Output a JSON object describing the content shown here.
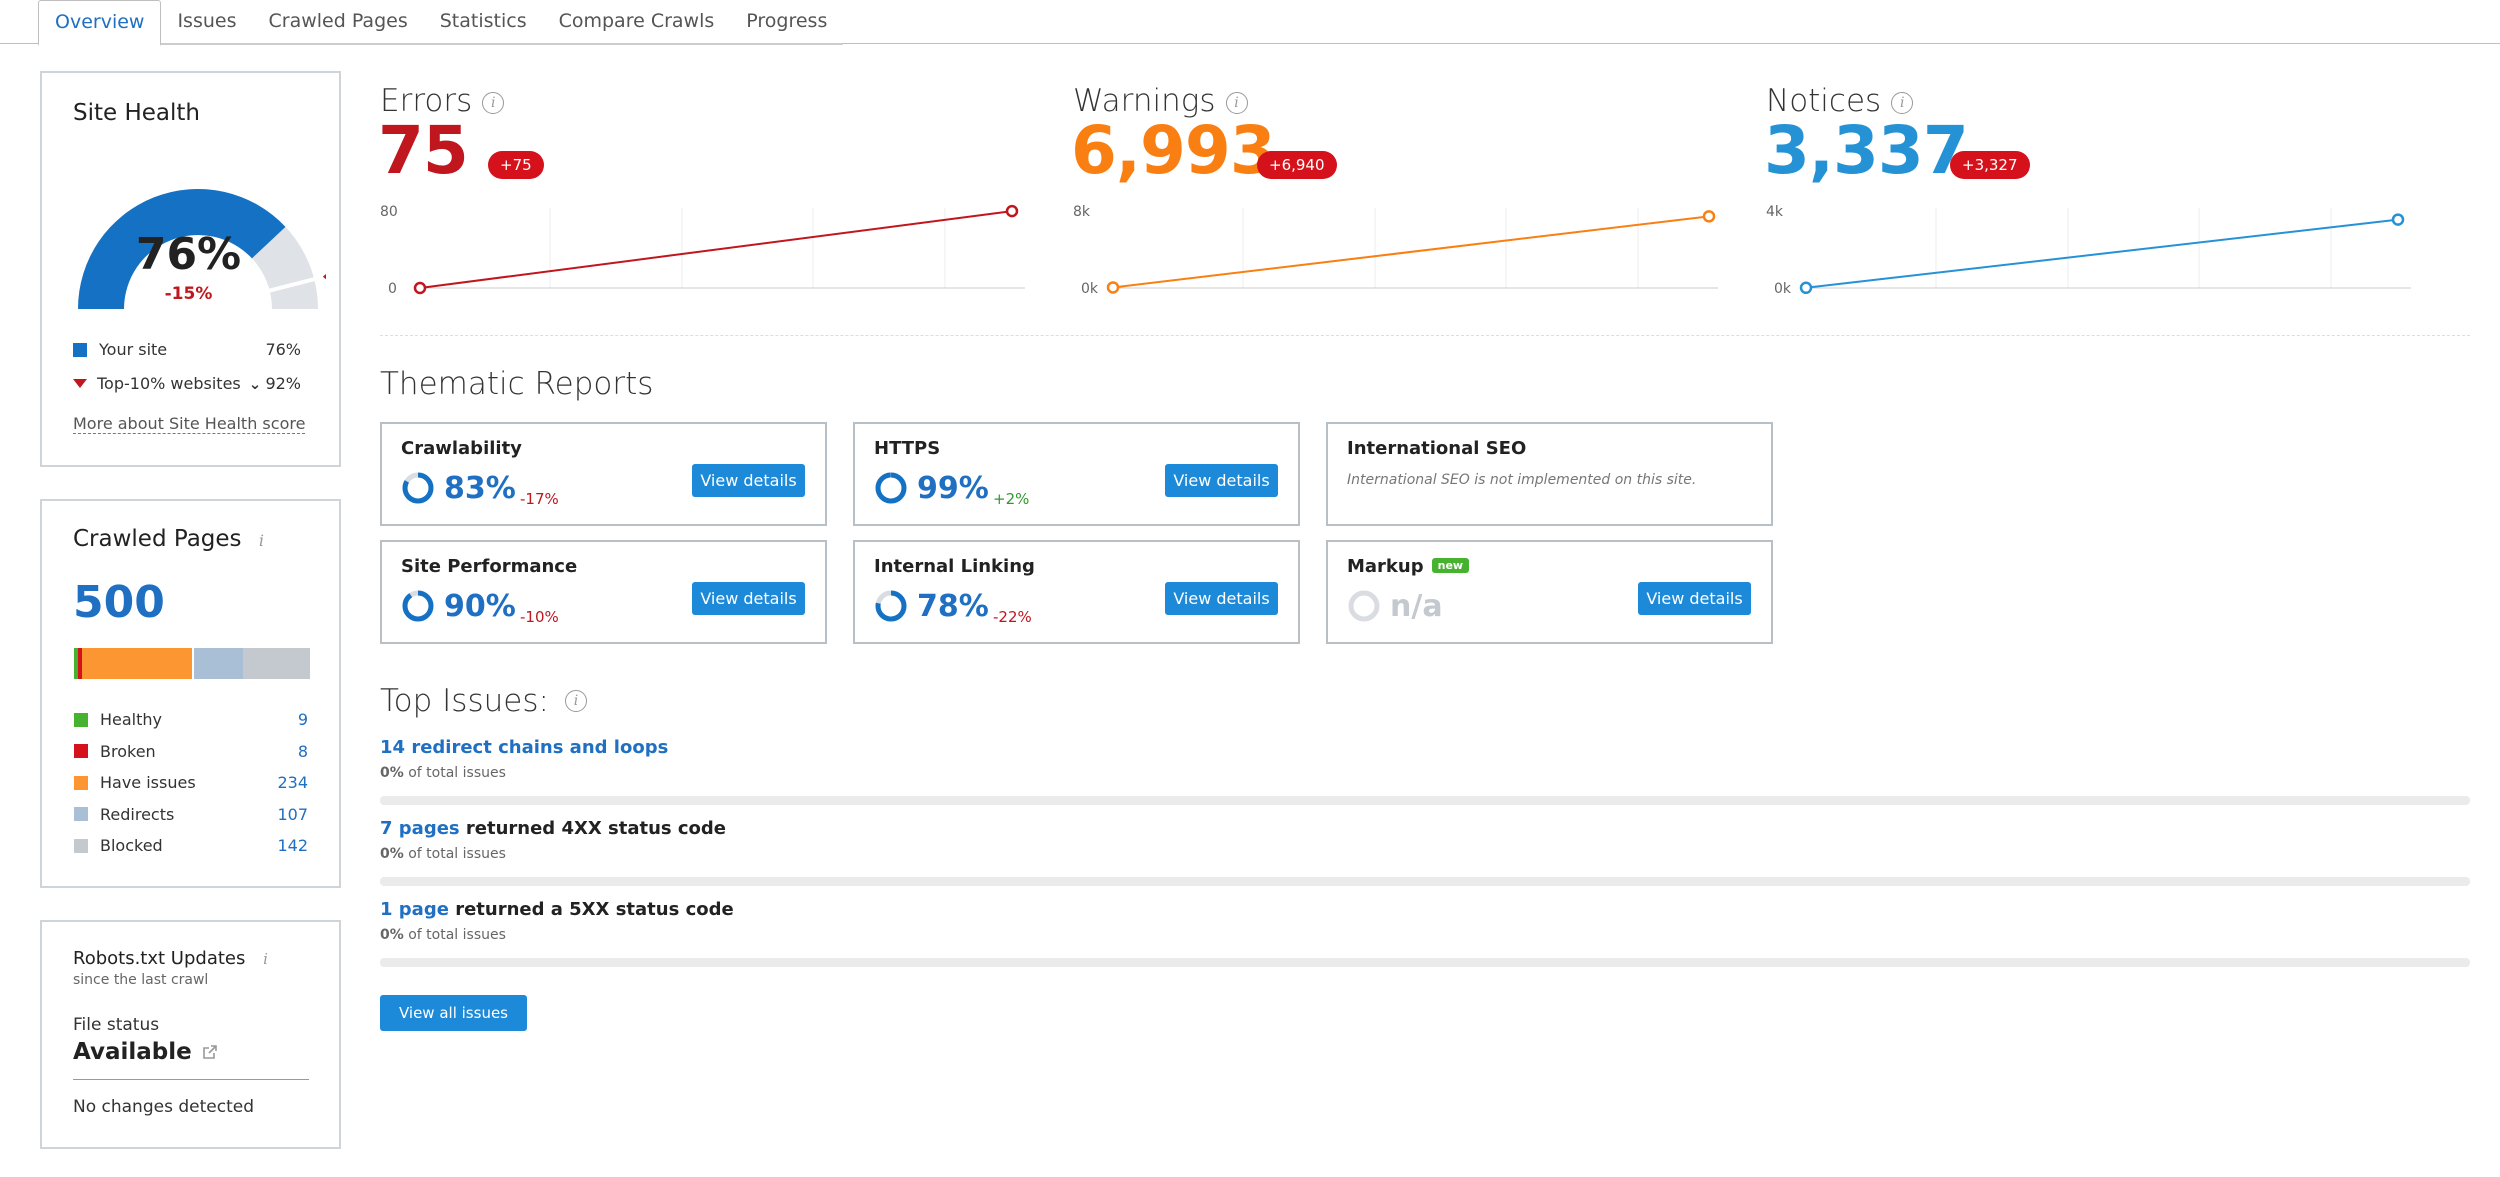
{
  "tabs": [
    {
      "label": "Overview",
      "active": true
    },
    {
      "label": "Issues"
    },
    {
      "label": "Crawled Pages"
    },
    {
      "label": "Statistics"
    },
    {
      "label": "Compare Crawls"
    },
    {
      "label": "Progress"
    }
  ],
  "site_health": {
    "title": "Site Health",
    "score": "76%",
    "score_value": 76,
    "delta": "-15%",
    "legend": [
      {
        "label": "Your site",
        "value": "76%",
        "color": "#1f6fc2"
      },
      {
        "label": "Top-10% websites",
        "value": "92%",
        "color": "#c0161e"
      }
    ],
    "top10_value": 92,
    "more_link": "More about Site Health score"
  },
  "crawled_pages": {
    "title": "Crawled Pages",
    "total": "500",
    "bar": [
      {
        "value": 9,
        "color": "#47b22f"
      },
      {
        "value": 8,
        "color": "#d5111b"
      },
      {
        "value": 234,
        "color": "#fb9633"
      },
      {
        "value": 107,
        "color": "#a9bfd6"
      },
      {
        "value": 142,
        "color": "#c3c9cf"
      }
    ],
    "legend": [
      {
        "label": "Healthy",
        "count": "9",
        "color": "#47b22f"
      },
      {
        "label": "Broken",
        "count": "8",
        "color": "#d5111b"
      },
      {
        "label": "Have issues",
        "count": "234",
        "color": "#fb9633"
      },
      {
        "label": "Redirects",
        "count": "107",
        "color": "#a9bfd6"
      },
      {
        "label": "Blocked",
        "count": "142",
        "color": "#c3c9cf"
      }
    ]
  },
  "robots": {
    "title": "Robots.txt Updates",
    "subtitle": "since the last crawl",
    "file_status_label": "File status",
    "file_status": "Available",
    "changes": "No changes detected"
  },
  "metrics": [
    {
      "label": "Errors",
      "value": "75",
      "delta": "+75",
      "color": "#c0161e",
      "ymax": "80",
      "ymin": "0",
      "start": 0,
      "end": 75,
      "max": 80
    },
    {
      "label": "Warnings",
      "value": "6,993",
      "delta": "+6,940",
      "color": "#fa7f12",
      "ymax": "8k",
      "ymin": "0k",
      "start": 53,
      "end": 6993,
      "max": 8000
    },
    {
      "label": "Notices",
      "value": "3,337",
      "delta": "+3,327",
      "color": "#2592d6",
      "ymax": "4k",
      "ymin": "0k",
      "start": 10,
      "end": 3337,
      "max": 4000
    }
  ],
  "thematic": {
    "title": "Thematic Reports",
    "cards": [
      {
        "title": "Crawlability",
        "pct": "83%",
        "value": 83,
        "delta": "-17%",
        "delta_color": "#c0161e",
        "button": "View details"
      },
      {
        "title": "HTTPS",
        "pct": "99%",
        "value": 99,
        "delta": "+2%",
        "delta_color": "#2e9a2e",
        "button": "View details"
      },
      {
        "title": "International SEO",
        "note": "International SEO is not implemented on this site."
      },
      {
        "title": "Site Performance",
        "pct": "90%",
        "value": 90,
        "delta": "-10%",
        "delta_color": "#c0161e",
        "button": "View details"
      },
      {
        "title": "Internal Linking",
        "pct": "78%",
        "value": 78,
        "delta": "-22%",
        "delta_color": "#c0161e",
        "button": "View details"
      },
      {
        "title": "Markup",
        "badge": "new",
        "pct": "n/a",
        "button": "View details"
      }
    ]
  },
  "top_issues": {
    "title": "Top Issues:",
    "items": [
      {
        "link": "14 redirect chains and loops",
        "text": "",
        "pct": "0%",
        "sub": "of total issues"
      },
      {
        "link": "7 pages",
        "text": "returned 4XX status code",
        "pct": "0%",
        "sub": "of total issues"
      },
      {
        "link": "1 page",
        "text": "returned a 5XX status code",
        "pct": "0%",
        "sub": "of total issues"
      }
    ],
    "button": "View all issues"
  }
}
